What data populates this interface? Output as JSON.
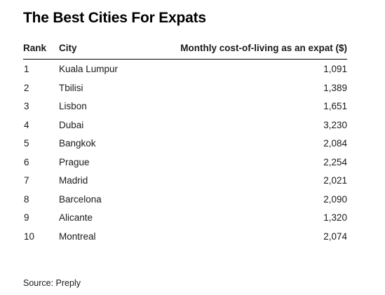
{
  "title": "The Best Cities For Expats",
  "source": "Source: Preply",
  "chart_data": {
    "type": "table",
    "title": "The Best Cities For Expats",
    "columns": [
      "Rank",
      "City",
      "Monthly cost-of-living as an expat ($)"
    ],
    "rows": [
      {
        "rank": "1",
        "city": "Kuala Lumpur",
        "cost": "1,091"
      },
      {
        "rank": "2",
        "city": "Tbilisi",
        "cost": "1,389"
      },
      {
        "rank": "3",
        "city": "Lisbon",
        "cost": "1,651"
      },
      {
        "rank": "4",
        "city": "Dubai",
        "cost": "3,230"
      },
      {
        "rank": "5",
        "city": "Bangkok",
        "cost": "2,084"
      },
      {
        "rank": "6",
        "city": "Prague",
        "cost": "2,254"
      },
      {
        "rank": "7",
        "city": "Madrid",
        "cost": "2,021"
      },
      {
        "rank": "8",
        "city": "Barcelona",
        "cost": "2,090"
      },
      {
        "rank": "9",
        "city": "Alicante",
        "cost": "1,320"
      },
      {
        "rank": "10",
        "city": "Montreal",
        "cost": "2,074"
      }
    ],
    "source": "Source: Preply"
  }
}
